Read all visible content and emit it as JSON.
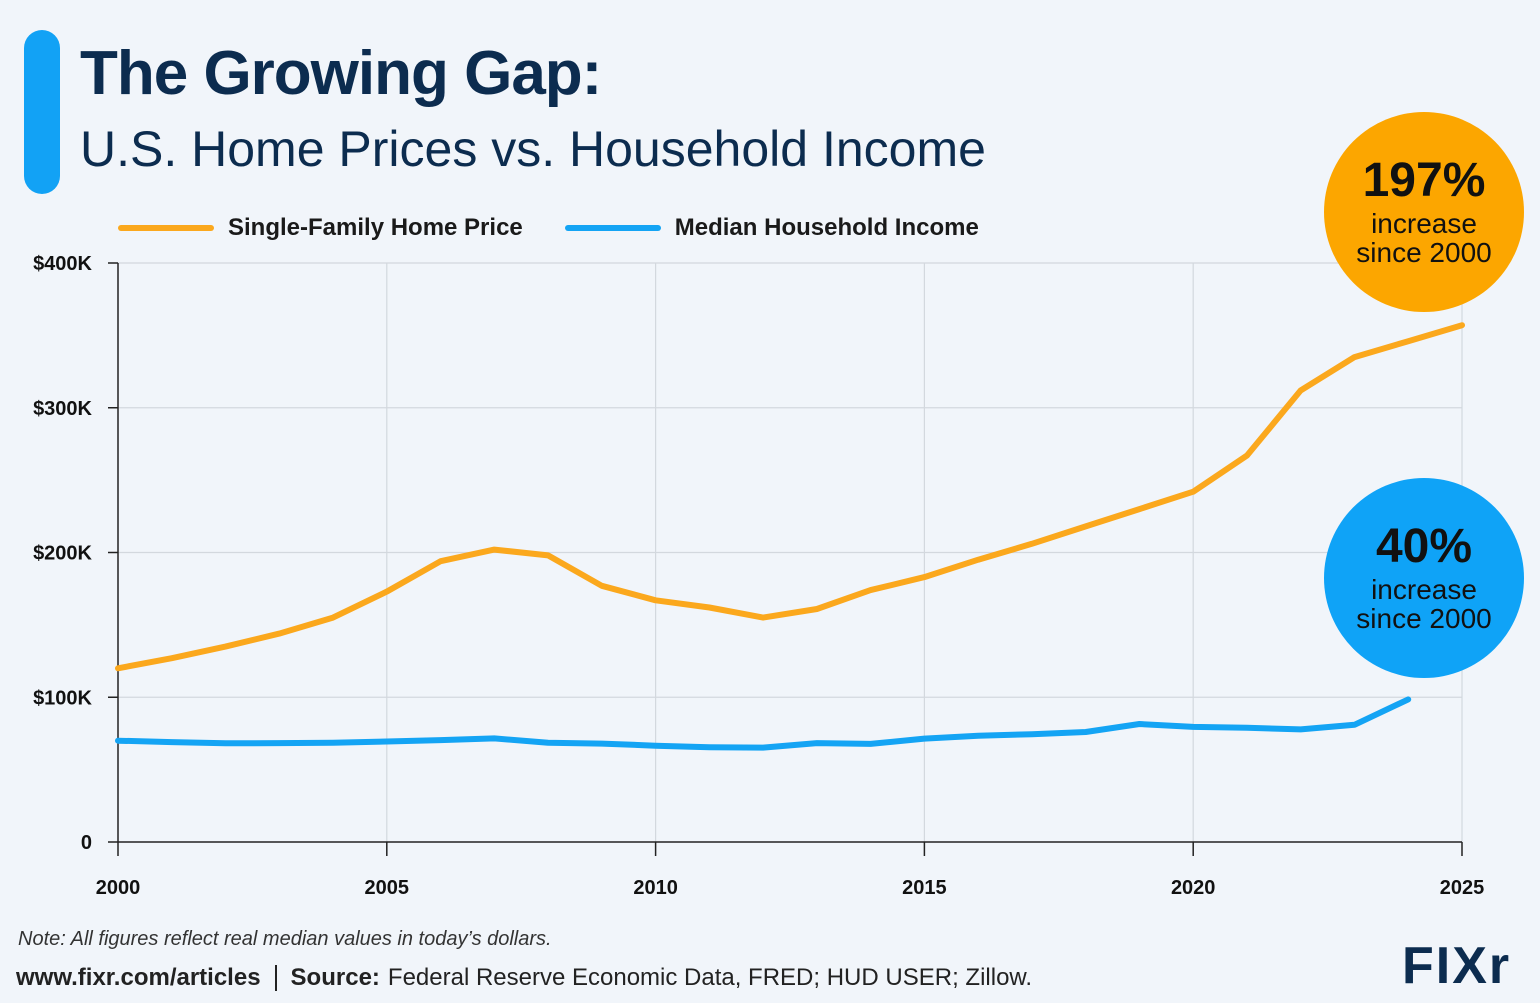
{
  "header": {
    "title": "The Growing Gap:",
    "subtitle": "U.S. Home Prices vs. Household Income"
  },
  "legend": {
    "home_label": "Single-Family Home Price",
    "income_label": "Median Household Income"
  },
  "badges": {
    "home": {
      "pct": "197%",
      "line1": "increase",
      "line2": "since 2000",
      "color": "#fca600"
    },
    "income": {
      "pct": "40%",
      "line1": "increase",
      "line2": "since 2000",
      "color": "#0fa3f7"
    }
  },
  "colors": {
    "home": "#fba81d",
    "income": "#14a4f4",
    "accent": "#12a2f5",
    "title": "#0c2c4f"
  },
  "chart_data": {
    "type": "line",
    "title": "The Growing Gap: U.S. Home Prices vs. Household Income",
    "xlabel": "",
    "ylabel": "",
    "xlim": [
      2000,
      2025
    ],
    "ylim": [
      0,
      400000
    ],
    "x_ticks": [
      2000,
      2005,
      2010,
      2015,
      2020,
      2025
    ],
    "x_tick_labels": [
      "2000",
      "2005",
      "2010",
      "2015",
      "2020",
      "2025"
    ],
    "y_ticks": [
      0,
      100000,
      200000,
      300000,
      400000
    ],
    "y_tick_labels": [
      "0",
      "$100K",
      "$200K",
      "$300K",
      "$400K"
    ],
    "grid": true,
    "legend_position": "top-left",
    "series": [
      {
        "name": "Single-Family Home Price",
        "x": [
          2000,
          2001,
          2002,
          2003,
          2004,
          2005,
          2006,
          2007,
          2008,
          2009,
          2010,
          2011,
          2012,
          2013,
          2014,
          2015,
          2016,
          2017,
          2018,
          2019,
          2020,
          2021,
          2022,
          2023,
          2024,
          2025
        ],
        "values": [
          120000,
          127000,
          135000,
          144000,
          155000,
          173000,
          194000,
          202000,
          198000,
          177000,
          167000,
          162000,
          155000,
          161000,
          174000,
          183000,
          195000,
          206000,
          218000,
          230000,
          242000,
          267000,
          312000,
          335000,
          346000,
          357000
        ]
      },
      {
        "name": "Median Household Income",
        "x": [
          2000,
          2001,
          2002,
          2003,
          2004,
          2005,
          2006,
          2007,
          2008,
          2009,
          2010,
          2011,
          2012,
          2013,
          2014,
          2015,
          2016,
          2017,
          2018,
          2019,
          2020,
          2021,
          2022,
          2023,
          2024
        ],
        "values": [
          70000,
          69000,
          68200,
          68300,
          68600,
          69400,
          70400,
          71600,
          68500,
          68000,
          66500,
          65500,
          65200,
          68300,
          67800,
          71400,
          73400,
          74500,
          76000,
          81500,
          79500,
          78900,
          77800,
          81000,
          98500
        ]
      }
    ]
  },
  "footer": {
    "note": "Note: All figures reflect real median values in today’s dollars.",
    "url": "www.fixr.com/articles",
    "source_label": "Source:",
    "source_text": "Federal Reserve Economic Data, FRED; HUD USER; Zillow.",
    "logo": "FIXr"
  }
}
